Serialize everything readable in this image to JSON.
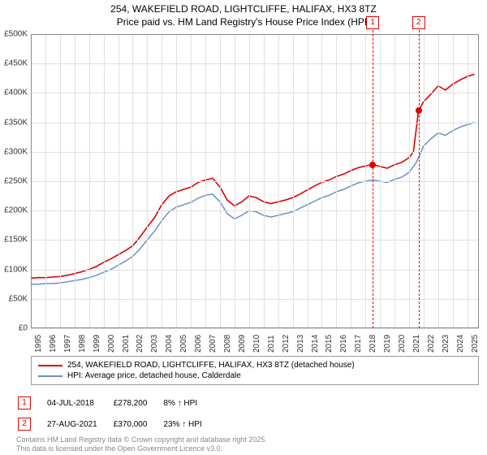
{
  "title_line1": "254, WAKEFIELD ROAD, LIGHTCLIFFE, HALIFAX, HX3 8TZ",
  "title_line2": "Price paid vs. HM Land Registry's House Price Index (HPI)",
  "chart": {
    "type": "line",
    "background_color": "#ffffff",
    "grid_color": "#e0e0e0",
    "y_axis": {
      "min": 0,
      "max": 500000,
      "step": 50000,
      "ticks": [
        "£0",
        "£50K",
        "£100K",
        "£150K",
        "£200K",
        "£250K",
        "£300K",
        "£350K",
        "£400K",
        "£450K",
        "£500K"
      ],
      "label_fontsize": 10
    },
    "x_axis": {
      "min": 1995,
      "max": 2025.8,
      "ticks": [
        1995,
        1996,
        1997,
        1998,
        1999,
        2000,
        2001,
        2002,
        2003,
        2004,
        2005,
        2006,
        2007,
        2008,
        2009,
        2010,
        2011,
        2012,
        2013,
        2014,
        2015,
        2016,
        2017,
        2018,
        2019,
        2020,
        2021,
        2022,
        2023,
        2024,
        2025
      ],
      "label_fontsize": 10
    },
    "series": [
      {
        "name": "property",
        "label": "254, WAKEFIELD ROAD, LIGHTCLIFFE, HALIFAX, HX3 8TZ (detached house)",
        "color": "#e00000",
        "line_width": 1.6,
        "data": [
          [
            1995,
            85000
          ],
          [
            1995.5,
            86000
          ],
          [
            1996,
            86000
          ],
          [
            1996.5,
            87000
          ],
          [
            1997,
            88000
          ],
          [
            1997.5,
            90000
          ],
          [
            1998,
            93000
          ],
          [
            1998.5,
            96000
          ],
          [
            1999,
            100000
          ],
          [
            1999.5,
            105000
          ],
          [
            2000,
            112000
          ],
          [
            2000.5,
            118000
          ],
          [
            2001,
            125000
          ],
          [
            2001.5,
            132000
          ],
          [
            2002,
            140000
          ],
          [
            2002.5,
            155000
          ],
          [
            2003,
            172000
          ],
          [
            2003.5,
            188000
          ],
          [
            2004,
            210000
          ],
          [
            2004.5,
            225000
          ],
          [
            2005,
            232000
          ],
          [
            2005.5,
            236000
          ],
          [
            2006,
            240000
          ],
          [
            2006.5,
            248000
          ],
          [
            2007,
            252000
          ],
          [
            2007.5,
            255000
          ],
          [
            2008,
            240000
          ],
          [
            2008.5,
            218000
          ],
          [
            2009,
            208000
          ],
          [
            2009.5,
            215000
          ],
          [
            2010,
            225000
          ],
          [
            2010.5,
            222000
          ],
          [
            2011,
            215000
          ],
          [
            2011.5,
            212000
          ],
          [
            2012,
            215000
          ],
          [
            2012.5,
            218000
          ],
          [
            2013,
            222000
          ],
          [
            2013.5,
            228000
          ],
          [
            2014,
            235000
          ],
          [
            2014.5,
            242000
          ],
          [
            2015,
            248000
          ],
          [
            2015.5,
            252000
          ],
          [
            2016,
            258000
          ],
          [
            2016.5,
            262000
          ],
          [
            2017,
            268000
          ],
          [
            2017.5,
            273000
          ],
          [
            2018,
            276000
          ],
          [
            2018.5,
            278200
          ],
          [
            2019,
            275000
          ],
          [
            2019.5,
            272000
          ],
          [
            2020,
            278000
          ],
          [
            2020.5,
            282000
          ],
          [
            2021,
            290000
          ],
          [
            2021.3,
            300000
          ],
          [
            2021.65,
            370000
          ],
          [
            2022,
            385000
          ],
          [
            2022.5,
            398000
          ],
          [
            2023,
            412000
          ],
          [
            2023.5,
            405000
          ],
          [
            2024,
            415000
          ],
          [
            2024.5,
            422000
          ],
          [
            2025,
            428000
          ],
          [
            2025.5,
            432000
          ]
        ]
      },
      {
        "name": "hpi",
        "label": "HPI: Average price, detached house, Calderdale",
        "color": "#6b90c4",
        "line_width": 1.5,
        "data": [
          [
            1995,
            75000
          ],
          [
            1995.5,
            75000
          ],
          [
            1996,
            76000
          ],
          [
            1996.5,
            76000
          ],
          [
            1997,
            77000
          ],
          [
            1997.5,
            79000
          ],
          [
            1998,
            81000
          ],
          [
            1998.5,
            83000
          ],
          [
            1999,
            86000
          ],
          [
            1999.5,
            90000
          ],
          [
            2000,
            95000
          ],
          [
            2000.5,
            100000
          ],
          [
            2001,
            107000
          ],
          [
            2001.5,
            114000
          ],
          [
            2002,
            122000
          ],
          [
            2002.5,
            135000
          ],
          [
            2003,
            150000
          ],
          [
            2003.5,
            165000
          ],
          [
            2004,
            183000
          ],
          [
            2004.5,
            198000
          ],
          [
            2005,
            206000
          ],
          [
            2005.5,
            210000
          ],
          [
            2006,
            214000
          ],
          [
            2006.5,
            221000
          ],
          [
            2007,
            226000
          ],
          [
            2007.5,
            228000
          ],
          [
            2008,
            215000
          ],
          [
            2008.5,
            195000
          ],
          [
            2009,
            186000
          ],
          [
            2009.5,
            192000
          ],
          [
            2010,
            200000
          ],
          [
            2010.5,
            198000
          ],
          [
            2011,
            192000
          ],
          [
            2011.5,
            189000
          ],
          [
            2012,
            192000
          ],
          [
            2012.5,
            195000
          ],
          [
            2013,
            198000
          ],
          [
            2013.5,
            204000
          ],
          [
            2014,
            210000
          ],
          [
            2014.5,
            216000
          ],
          [
            2015,
            222000
          ],
          [
            2015.5,
            226000
          ],
          [
            2016,
            232000
          ],
          [
            2016.5,
            236000
          ],
          [
            2017,
            242000
          ],
          [
            2017.5,
            247000
          ],
          [
            2018,
            250000
          ],
          [
            2018.5,
            252000
          ],
          [
            2019,
            250000
          ],
          [
            2019.5,
            248000
          ],
          [
            2020,
            253000
          ],
          [
            2020.5,
            257000
          ],
          [
            2021,
            265000
          ],
          [
            2021.5,
            282000
          ],
          [
            2022,
            310000
          ],
          [
            2022.5,
            322000
          ],
          [
            2023,
            332000
          ],
          [
            2023.5,
            328000
          ],
          [
            2024,
            336000
          ],
          [
            2024.5,
            342000
          ],
          [
            2025,
            346000
          ],
          [
            2025.5,
            350000
          ]
        ]
      }
    ],
    "markers": [
      {
        "n": 1,
        "year": 2018.5,
        "value": 278200,
        "color": "#e00000",
        "dot": true
      },
      {
        "n": 2,
        "year": 2021.65,
        "value": 370000,
        "color": "#e00000",
        "dot": true
      }
    ]
  },
  "legend": {
    "row1": "254, WAKEFIELD ROAD, LIGHTCLIFFE, HALIFAX, HX3 8TZ (detached house)",
    "row2": "HPI: Average price, detached house, Calderdale"
  },
  "transactions": [
    {
      "n": 1,
      "date": "04-JUL-2018",
      "price": "£278,200",
      "diff": "8% ↑ HPI",
      "color": "#e00000"
    },
    {
      "n": 2,
      "date": "27-AUG-2021",
      "price": "£370,000",
      "diff": "23% ↑ HPI",
      "color": "#e00000"
    }
  ],
  "footer": {
    "line1": "Contains HM Land Registry data © Crown copyright and database right 2025.",
    "line2": "This data is licensed under the Open Government Licence v3.0."
  }
}
